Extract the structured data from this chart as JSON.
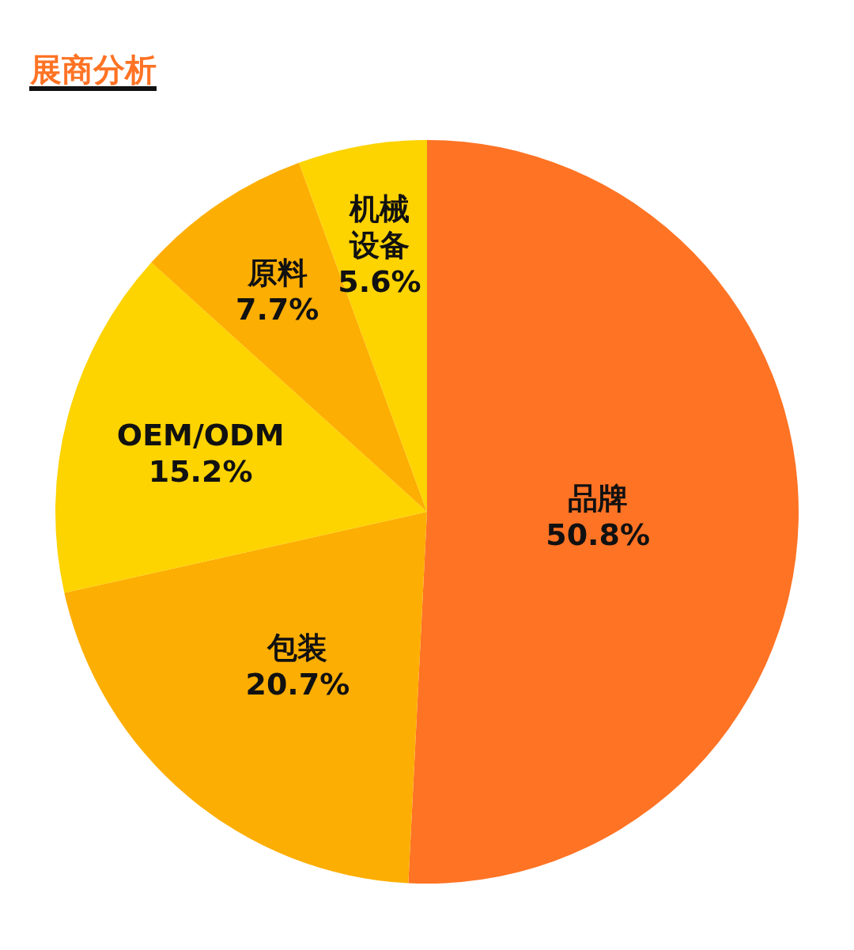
{
  "chart_data": {
    "type": "pie",
    "title": "展商分析",
    "categories": [
      "品牌",
      "包装",
      "OEM/ODM",
      "原料",
      "机械设备"
    ],
    "values": [
      50.8,
      20.7,
      15.2,
      7.7,
      5.6
    ],
    "colors": [
      "#ff7324",
      "#fdae02",
      "#fdd300",
      "#fdae02",
      "#fdd300"
    ],
    "value_labels": [
      "50.8%",
      "20.7%",
      "15.2%",
      "7.7%",
      "5.6%"
    ]
  }
}
